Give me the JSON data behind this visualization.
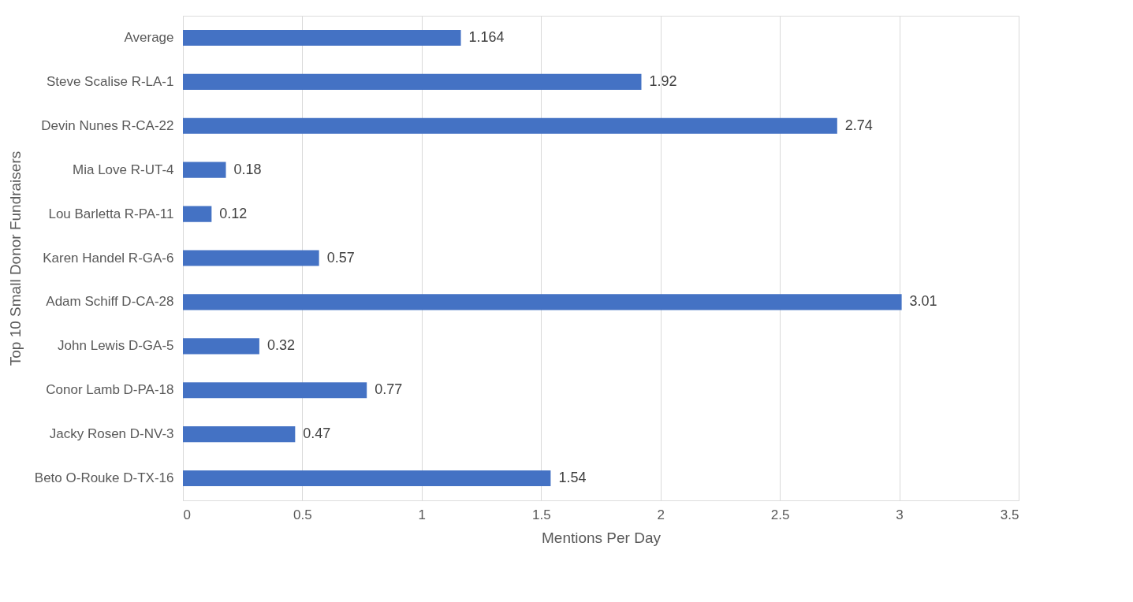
{
  "chart_data": {
    "type": "bar",
    "orientation": "horizontal",
    "xlabel": "Mentions Per Day",
    "ylabel": "Top 10 Small Donor Fundraisers",
    "categories": [
      "Average",
      "Steve Scalise R-LA-1",
      "Devin Nunes R-CA-22",
      "Mia Love R-UT-4",
      "Lou Barletta R-PA-11",
      "Karen Handel R-GA-6",
      "Adam Schiff D-CA-28",
      "John Lewis D-GA-5",
      "Conor Lamb D-PA-18",
      "Jacky Rosen D-NV-3",
      "Beto O-Rouke D-TX-16"
    ],
    "values": [
      1.164,
      1.92,
      2.74,
      0.18,
      0.12,
      0.57,
      3.01,
      0.32,
      0.77,
      0.47,
      1.54
    ],
    "color": "#4472c4",
    "xlim": [
      0,
      3.5
    ],
    "xticks": [
      0,
      0.5,
      1,
      1.5,
      2,
      2.5,
      3,
      3.5
    ],
    "grid": "x",
    "data_labels": true
  }
}
